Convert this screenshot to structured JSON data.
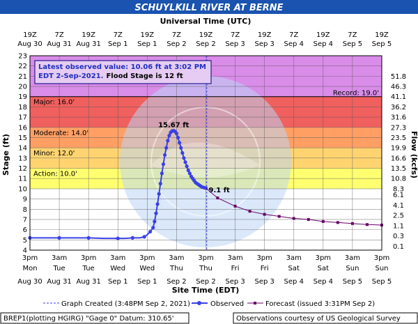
{
  "title": "SCHUYLKILL RIVER AT BERNE",
  "info_box": {
    "line1": "Latest observed value: 10.06 ft at 3:02 PM",
    "line2": "EDT 2-Sep-2021.",
    "line2_bold": "Flood Stage is 12 ft"
  },
  "legend": {
    "created": "Graph Created (3:48PM Sep 2, 2021)",
    "observed": "Observed",
    "forecast": "Forecast (issued 3:31PM Sep 2)"
  },
  "footer": {
    "left": "BREP1(plotting HGIRG) \"Gage 0\" Datum: 310.65'",
    "right": "Observations courtesy of US Geological Survey"
  },
  "colors": {
    "title_bar": "#1a53b0",
    "record_band": "#d98ce8",
    "major_band": "#f0605e",
    "moderate_band": "#ff9f64",
    "minor_band": "#ffd470",
    "action_band": "#ffff70",
    "observed": "#3a40e6",
    "forecast": "#660066",
    "created_line": "#3a40e6"
  },
  "chart_data": {
    "type": "line",
    "title": "SCHUYLKILL RIVER AT BERNE",
    "top_axis_title": "Universal Time (UTC)",
    "xlabel": "Site Time (EDT)",
    "ylabel_left": "Stage (ft)",
    "ylabel_right": "Flow (kcfs)",
    "ylim": [
      4,
      23
    ],
    "y_ticks": [
      4,
      5,
      6,
      7,
      8,
      9,
      10,
      11,
      12,
      13,
      14,
      15,
      16,
      17,
      18,
      19,
      20,
      21,
      22,
      23
    ],
    "right_ticks": [
      {
        "stage": 4.37,
        "label": "0.1"
      },
      {
        "stage": 5.4,
        "label": "0.3"
      },
      {
        "stage": 6.4,
        "label": "1.1"
      },
      {
        "stage": 7.4,
        "label": "2.5"
      },
      {
        "stage": 8.4,
        "label": "4.1"
      },
      {
        "stage": 9.4,
        "label": "6.1"
      },
      {
        "stage": 10.0,
        "label": "8.3"
      },
      {
        "stage": 11.0,
        "label": "10.8"
      },
      {
        "stage": 12.0,
        "label": "13.5"
      },
      {
        "stage": 13.0,
        "label": "16.6"
      },
      {
        "stage": 14.0,
        "label": "19.9"
      },
      {
        "stage": 15.0,
        "label": "23.5"
      },
      {
        "stage": 16.0,
        "label": "27.3"
      },
      {
        "stage": 17.0,
        "label": "31.6"
      },
      {
        "stage": 18.0,
        "label": "36.2"
      },
      {
        "stage": 19.0,
        "label": "41.1"
      },
      {
        "stage": 20.0,
        "label": "46.3"
      },
      {
        "stage": 21.0,
        "label": "51.8"
      }
    ],
    "x_ticks": [
      {
        "top1": "19Z",
        "top2": "Aug 30",
        "bottom1": "3pm",
        "bottom2": "Mon",
        "bottom3": "Aug 30"
      },
      {
        "top1": "7Z",
        "top2": "Aug 31",
        "bottom1": "3am",
        "bottom2": "Tue",
        "bottom3": "Aug 31"
      },
      {
        "top1": "19Z",
        "top2": "Aug 31",
        "bottom1": "3pm",
        "bottom2": "Tue",
        "bottom3": "Aug 31"
      },
      {
        "top1": "7Z",
        "top2": "Sep 1",
        "bottom1": "3am",
        "bottom2": "Wed",
        "bottom3": "Sep 1"
      },
      {
        "top1": "19Z",
        "top2": "Sep 1",
        "bottom1": "3pm",
        "bottom2": "Wed",
        "bottom3": "Sep 1"
      },
      {
        "top1": "7Z",
        "top2": "Sep 2",
        "bottom1": "3am",
        "bottom2": "Thu",
        "bottom3": "Sep 2"
      },
      {
        "top1": "19Z",
        "top2": "Sep 2",
        "bottom1": "3pm",
        "bottom2": "Thu",
        "bottom3": "Sep 2"
      },
      {
        "top1": "7Z",
        "top2": "Sep 3",
        "bottom1": "3am",
        "bottom2": "Fri",
        "bottom3": "Sep 3"
      },
      {
        "top1": "19Z",
        "top2": "Sep 3",
        "bottom1": "3pm",
        "bottom2": "Fri",
        "bottom3": "Sep 3"
      },
      {
        "top1": "7Z",
        "top2": "Sep 4",
        "bottom1": "3am",
        "bottom2": "Sat",
        "bottom3": "Sep 4"
      },
      {
        "top1": "19Z",
        "top2": "Sep 4",
        "bottom1": "3pm",
        "bottom2": "Sat",
        "bottom3": "Sep 4"
      },
      {
        "top1": "7Z",
        "top2": "Sep 5",
        "bottom1": "3am",
        "bottom2": "Sun",
        "bottom3": "Sep 5"
      },
      {
        "top1": "19Z",
        "top2": "Sep 5",
        "bottom1": "3pm",
        "bottom2": "Sun",
        "bottom3": "Sep 5"
      }
    ],
    "bands": [
      {
        "label": "Action: 10.0'",
        "from": 10,
        "to": 12,
        "color_key": "action_band"
      },
      {
        "label": "Minor: 12.0'",
        "from": 12,
        "to": 14,
        "color_key": "minor_band"
      },
      {
        "label": "Moderate: 14.0'",
        "from": 14,
        "to": 16,
        "color_key": "moderate_band"
      },
      {
        "label": "Major: 16.0'",
        "from": 16,
        "to": 19,
        "color_key": "major_band"
      },
      {
        "label": "",
        "from": 19,
        "to": 23,
        "color_key": "record_band"
      }
    ],
    "record": {
      "label": "Record: 19.0'",
      "value": 19
    },
    "created_x": 6.03,
    "peak_label": "15.67 ft",
    "forecast_start_label": "9.1 ft",
    "series": [
      {
        "name": "Observed",
        "x": [
          0,
          0.5,
          1,
          1.5,
          2,
          2.5,
          3,
          3.25,
          3.5,
          3.75,
          3.9,
          4.0,
          4.1,
          4.2,
          4.25,
          4.3,
          4.35,
          4.4,
          4.45,
          4.5,
          4.55,
          4.6,
          4.65,
          4.7,
          4.75,
          4.8,
          4.85,
          4.9,
          4.95,
          5.0,
          5.05,
          5.1,
          5.15,
          5.2,
          5.25,
          5.3,
          5.35,
          5.4,
          5.45,
          5.5,
          5.55,
          5.6,
          5.65,
          5.7,
          5.75,
          5.8,
          5.85,
          5.9,
          5.95,
          6.0
        ],
        "y": [
          5.2,
          5.2,
          5.2,
          5.2,
          5.2,
          5.15,
          5.15,
          5.15,
          5.2,
          5.2,
          5.3,
          5.5,
          5.8,
          6.2,
          6.8,
          7.6,
          8.5,
          9.5,
          10.5,
          11.5,
          12.4,
          13.3,
          14.0,
          14.7,
          15.2,
          15.5,
          15.65,
          15.67,
          15.6,
          15.4,
          15.0,
          14.5,
          14.0,
          13.5,
          13.0,
          12.6,
          12.2,
          11.8,
          11.5,
          11.2,
          11.0,
          10.8,
          10.6,
          10.5,
          10.4,
          10.3,
          10.2,
          10.15,
          10.1,
          10.06
        ]
      },
      {
        "name": "Forecast",
        "x": [
          6.0,
          6.4,
          7.0,
          7.5,
          8.0,
          8.5,
          9.0,
          9.5,
          10.0,
          10.5,
          11.0,
          11.5,
          12.0
        ],
        "y": [
          10.06,
          9.1,
          8.3,
          7.8,
          7.5,
          7.3,
          7.1,
          7.0,
          6.8,
          6.7,
          6.6,
          6.5,
          6.45
        ]
      }
    ]
  }
}
